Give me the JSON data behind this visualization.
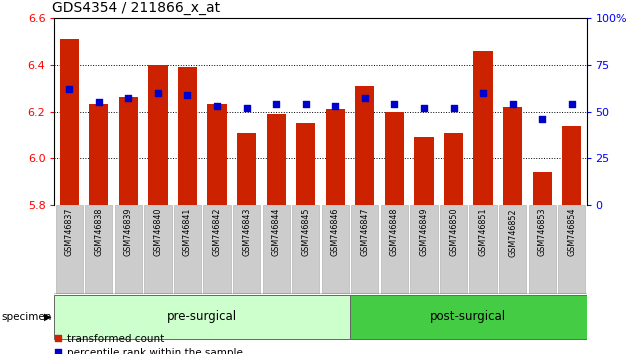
{
  "title": "GDS4354 / 211866_x_at",
  "samples": [
    "GSM746837",
    "GSM746838",
    "GSM746839",
    "GSM746840",
    "GSM746841",
    "GSM746842",
    "GSM746843",
    "GSM746844",
    "GSM746845",
    "GSM746846",
    "GSM746847",
    "GSM746848",
    "GSM746849",
    "GSM746850",
    "GSM746851",
    "GSM746852",
    "GSM746853",
    "GSM746854"
  ],
  "bar_values": [
    6.51,
    6.23,
    6.26,
    6.4,
    6.39,
    6.23,
    6.11,
    6.19,
    6.15,
    6.21,
    6.31,
    6.2,
    6.09,
    6.11,
    6.46,
    6.22,
    5.94,
    6.14
  ],
  "dot_percentiles": [
    62,
    55,
    57,
    60,
    59,
    53,
    52,
    54,
    54,
    53,
    57,
    54,
    52,
    52,
    60,
    54,
    46,
    54
  ],
  "ylim_left": [
    5.8,
    6.6
  ],
  "ylim_right": [
    0,
    100
  ],
  "yticks_left": [
    5.8,
    6.0,
    6.2,
    6.4,
    6.6
  ],
  "yticks_right": [
    0,
    25,
    50,
    75,
    100
  ],
  "bar_color": "#cc2200",
  "dot_color": "#0000cc",
  "pre_surgical_count": 10,
  "group_labels": [
    "pre-surgical",
    "post-surgical"
  ],
  "pre_color": "#ccffcc",
  "post_color": "#44cc44",
  "bar_bottom": 5.8,
  "legend_items": [
    "transformed count",
    "percentile rank within the sample"
  ],
  "legend_colors": [
    "#cc2200",
    "#0000cc"
  ]
}
